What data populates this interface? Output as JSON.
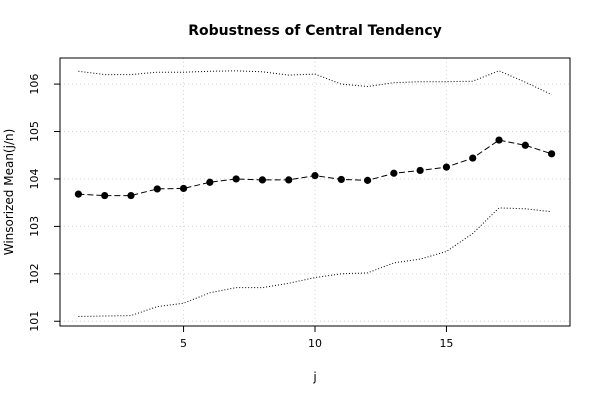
{
  "chart_data": {
    "type": "line",
    "title": "Robustness of Central Tendency",
    "xlabel": "j",
    "ylabel": "Winsorized Mean(j/n)",
    "xlim": [
      0.3,
      19.7
    ],
    "ylim": [
      100.9,
      106.55
    ],
    "x_ticks": [
      5,
      10,
      15
    ],
    "y_ticks": [
      101,
      102,
      103,
      104,
      105,
      106
    ],
    "grid": true,
    "x": [
      1,
      2,
      3,
      4,
      5,
      6,
      7,
      8,
      9,
      10,
      11,
      12,
      13,
      14,
      15,
      16,
      17,
      18,
      19
    ],
    "series": [
      {
        "style": "dashed-with-points",
        "color": "#000000",
        "values": [
          103.68,
          103.65,
          103.65,
          103.79,
          103.8,
          103.93,
          104.0,
          103.98,
          103.98,
          104.07,
          103.99,
          103.97,
          104.12,
          104.18,
          104.25,
          104.44,
          104.82,
          104.71,
          104.53
        ]
      },
      {
        "style": "dotted",
        "color": "#000000",
        "values": [
          106.27,
          106.2,
          106.2,
          106.25,
          106.25,
          106.27,
          106.28,
          106.26,
          106.19,
          106.21,
          106.0,
          105.95,
          106.03,
          106.05,
          106.05,
          106.06,
          106.28,
          106.04,
          105.78
        ]
      },
      {
        "style": "dotted",
        "color": "#000000",
        "values": [
          101.1,
          101.11,
          101.12,
          101.31,
          101.38,
          101.6,
          101.71,
          101.71,
          101.8,
          101.92,
          102.0,
          102.02,
          102.23,
          102.31,
          102.47,
          102.85,
          103.39,
          103.37,
          103.31
        ]
      }
    ]
  }
}
